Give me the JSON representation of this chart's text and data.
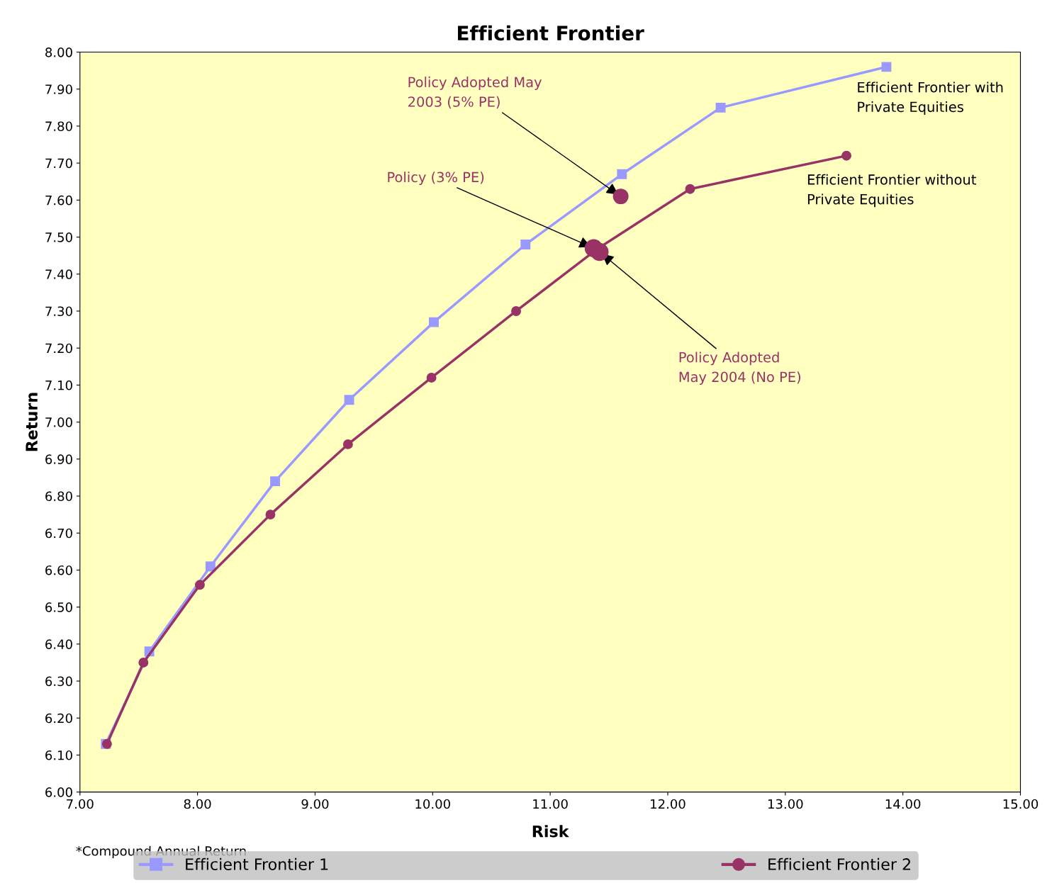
{
  "chart_data": {
    "type": "line",
    "title": "Efficient Frontier",
    "xlabel": "Risk",
    "ylabel": "Return",
    "series": [
      {
        "name": "Efficient Frontier 1",
        "color": "#9999ff",
        "marker": "square",
        "x": [
          7.22,
          7.59,
          8.11,
          8.66,
          9.29,
          10.01,
          10.79,
          11.61,
          12.45,
          13.86
        ],
        "values": [
          6.13,
          6.38,
          6.61,
          6.84,
          7.06,
          7.27,
          7.48,
          7.67,
          7.85,
          7.96
        ]
      },
      {
        "name": "Efficient Frontier 2",
        "color": "#993366",
        "marker": "circle",
        "x": [
          7.23,
          7.54,
          8.02,
          8.62,
          9.28,
          9.99,
          10.71,
          11.41,
          12.19,
          13.52
        ],
        "values": [
          6.13,
          6.35,
          6.56,
          6.75,
          6.94,
          7.12,
          7.3,
          7.47,
          7.63,
          7.72
        ]
      },
      {
        "type": "scatter",
        "color": "#993366",
        "marker": "circle",
        "x": [
          11.6,
          11.37,
          11.42
        ],
        "values": [
          7.61,
          7.47,
          7.46
        ]
      }
    ],
    "xlim": [
      7,
      15
    ],
    "ylim": [
      6,
      8
    ],
    "xticks": [
      {
        "value": 7,
        "label": "7.00"
      },
      {
        "value": 8,
        "label": "8.00"
      },
      {
        "value": 9,
        "label": "9.00"
      },
      {
        "value": 10,
        "label": "10.00"
      },
      {
        "value": 11,
        "label": "11.00"
      },
      {
        "value": 12,
        "label": "12.00"
      },
      {
        "value": 13,
        "label": "13.00"
      },
      {
        "value": 14,
        "label": "14.00"
      },
      {
        "value": 15,
        "label": "15.00"
      }
    ],
    "yticks": [
      {
        "value": 6,
        "label": "6.00"
      },
      {
        "value": 6.1,
        "label": "6.10"
      },
      {
        "value": 6.2,
        "label": "6.20"
      },
      {
        "value": 6.3,
        "label": "6.30"
      },
      {
        "value": 6.4,
        "label": "6.40"
      },
      {
        "value": 6.5,
        "label": "6.50"
      },
      {
        "value": 6.6,
        "label": "6.60"
      },
      {
        "value": 6.7,
        "label": "6.70"
      },
      {
        "value": 6.8,
        "label": "6.80"
      },
      {
        "value": 6.9,
        "label": "6.90"
      },
      {
        "value": 7,
        "label": "7.00"
      },
      {
        "value": 7.1,
        "label": "7.10"
      },
      {
        "value": 7.2,
        "label": "7.20"
      },
      {
        "value": 7.3,
        "label": "7.30"
      },
      {
        "value": 7.4,
        "label": "7.40"
      },
      {
        "value": 7.5,
        "label": "7.50"
      },
      {
        "value": 7.6,
        "label": "7.60"
      },
      {
        "value": 7.7,
        "label": "7.70"
      },
      {
        "value": 7.8,
        "label": "7.80"
      },
      {
        "value": 7.9,
        "label": "7.90"
      },
      {
        "value": 8,
        "label": "8.00"
      }
    ],
    "grid": false,
    "legend": "bottom",
    "annotations": [
      {
        "text": "Policy Adopted May\n2003 (5% PE)",
        "x": 11.6,
        "y": 7.61
      },
      {
        "text": "Policy (3% PE)",
        "x": 11.37,
        "y": 7.47
      },
      {
        "text": "Policy Adopted\nMay 2004 (No PE)",
        "x": 11.42,
        "y": 7.46
      },
      {
        "text": "Efficient Frontier with\nPrivate Equities",
        "x": 13.86,
        "y": 7.96
      },
      {
        "text": "Efficient Frontier without\nPrivate Equities",
        "x": 13.52,
        "y": 7.72
      },
      "*Compound Annual Return"
    ]
  }
}
